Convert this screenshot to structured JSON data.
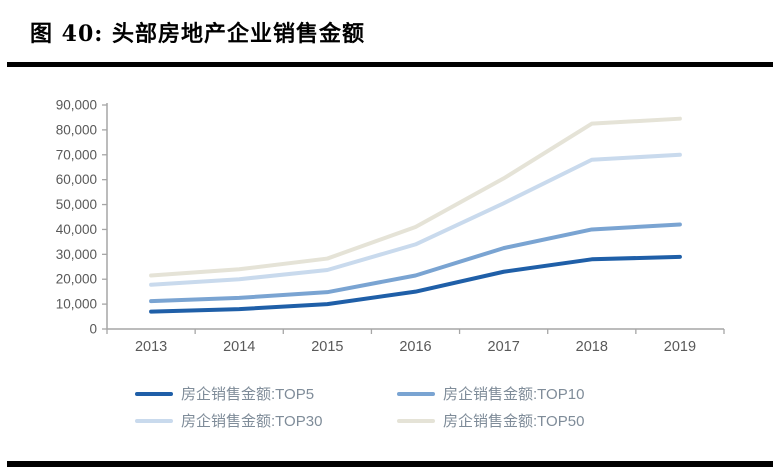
{
  "figure": {
    "title": "图  40:  头部房地产企业销售金额"
  },
  "chart_data": {
    "type": "line",
    "title": "",
    "xlabel": "",
    "ylabel": "",
    "categories": [
      "2013",
      "2014",
      "2015",
      "2016",
      "2017",
      "2018",
      "2019"
    ],
    "series": [
      {
        "name": "房企销售金额:TOP5",
        "color": "#1F5FA8",
        "values": [
          7000,
          8000,
          10000,
          15000,
          23000,
          28000,
          29000
        ]
      },
      {
        "name": "房企销售金额:TOP10",
        "color": "#7AA4D2",
        "values": [
          11200,
          12500,
          14800,
          21500,
          32500,
          40000,
          42000
        ]
      },
      {
        "name": "房企销售金额:TOP30",
        "color": "#C9DAED",
        "values": [
          17800,
          20000,
          23700,
          34000,
          50500,
          68000,
          70000
        ]
      },
      {
        "name": "房企销售金额:TOP50",
        "color": "#E5E3D7",
        "values": [
          21500,
          24000,
          28300,
          41000,
          60500,
          82500,
          84500
        ]
      }
    ],
    "ylim": [
      0,
      90000
    ],
    "ytick_step": 10000,
    "yticklabels": [
      "0",
      "10,000",
      "20,000",
      "30,000",
      "40,000",
      "50,000",
      "60,000",
      "70,000",
      "80,000",
      "90,000"
    ],
    "grid": false,
    "legend_position": "bottom",
    "axis_color": "#A6A6A6",
    "tick_label_color": "#595959"
  }
}
